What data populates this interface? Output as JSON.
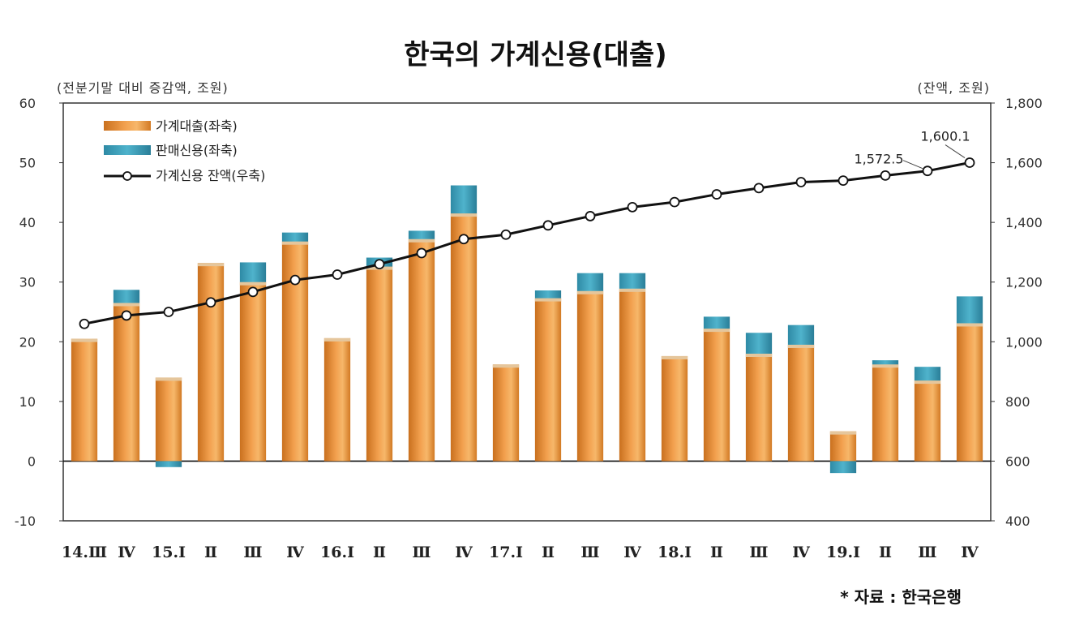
{
  "title": "한국의 가계신용(대출)",
  "left_axis_note": "(전분기말 대비 증감액, 조원)",
  "right_axis_note": "(잔액, 조원)",
  "source": "* 자료 : 한국은행",
  "colors": {
    "household_loans": "#F2A04E",
    "sales_credit": "#4FB3CC",
    "balance_line": "#111111",
    "axis": "#333333"
  },
  "chart_data": {
    "type": "bar",
    "categories": [
      "14.Ⅲ",
      "Ⅳ",
      "15.Ⅰ",
      "Ⅱ",
      "Ⅲ",
      "Ⅳ",
      "16.Ⅰ",
      "Ⅱ",
      "Ⅲ",
      "Ⅳ",
      "17.Ⅰ",
      "Ⅱ",
      "Ⅲ",
      "Ⅳ",
      "18.Ⅰ",
      "Ⅱ",
      "Ⅲ",
      "Ⅳ",
      "19.Ⅰ",
      "Ⅱ",
      "Ⅲ",
      "Ⅳ"
    ],
    "series": [
      {
        "name": "가계대출(좌축)",
        "axis": "left",
        "type": "bar",
        "values": [
          20.5,
          26.5,
          14,
          33.2,
          30,
          36.8,
          20.6,
          32.6,
          37.2,
          41.5,
          16.2,
          27.3,
          28.5,
          28.9,
          17.6,
          22.2,
          18,
          19.5,
          5,
          16.2,
          13.5,
          23.1
        ]
      },
      {
        "name": "판매신용(좌축)",
        "axis": "left",
        "type": "bar",
        "values": [
          0,
          2.2,
          -1,
          0,
          3.3,
          1.5,
          0,
          1.5,
          1.4,
          4.7,
          0,
          1.3,
          3,
          2.6,
          0,
          2,
          3.5,
          3.3,
          -2,
          0.7,
          2.3,
          4.5
        ]
      },
      {
        "name": "가계신용 잔액(우축)",
        "axis": "right",
        "type": "line",
        "values": [
          1060,
          1088,
          1100,
          1132,
          1167,
          1207,
          1225,
          1260,
          1297,
          1344,
          1359,
          1390,
          1421,
          1451,
          1468,
          1494,
          1515,
          1535,
          1540,
          1557,
          1572.5,
          1600.1
        ]
      }
    ],
    "left_axis": {
      "ylim": [
        -10,
        60
      ],
      "ticks": [
        "-10",
        "0",
        "10",
        "20",
        "30",
        "40",
        "50",
        "60"
      ]
    },
    "right_axis": {
      "ylim": [
        400,
        1800
      ],
      "ticks": [
        "400",
        "600",
        "800",
        "1,000",
        "1,200",
        "1,400",
        "1,600",
        "1,800"
      ]
    },
    "annotations": [
      {
        "category_index": 20,
        "text": "1,572.5"
      },
      {
        "category_index": 21,
        "text": "1,600.1"
      }
    ],
    "legend_position": "top-left",
    "grid": false
  }
}
